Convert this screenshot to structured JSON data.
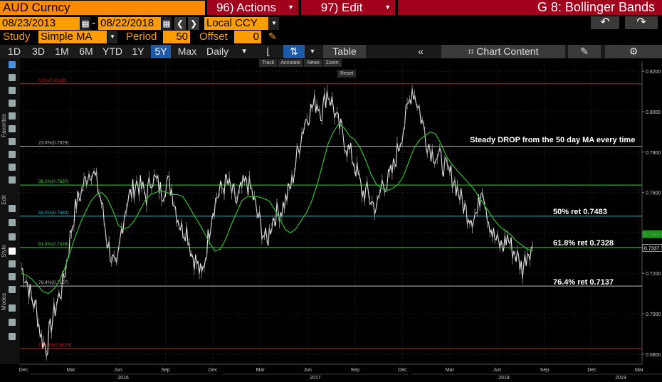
{
  "header": {
    "security": "AUD Curncy",
    "actions_label": "96) Actions",
    "edit_label": "97) Edit",
    "window_title": "G 8: Bollinger Bands"
  },
  "dates": {
    "start": "08/23/2013",
    "separator": "-",
    "end": "08/22/2018",
    "currency": "Local CCY"
  },
  "study": {
    "study_label": "Study",
    "study_value": "Simple MA",
    "period_label": "Period",
    "period_value": "50",
    "offset_label": "Offset",
    "offset_value": "0"
  },
  "toolbar": {
    "ranges": [
      "1D",
      "3D",
      "1M",
      "6M",
      "YTD",
      "1Y",
      "5Y",
      "Max"
    ],
    "active_range": "5Y",
    "frequency": "Daily",
    "table_label": "Table",
    "chart_content_label": "Chart Content"
  },
  "mini_toolbar": {
    "track": "Track",
    "annotate": "Annotate",
    "news": "News",
    "zoom": "Zoom",
    "reset": "Reset"
  },
  "side_labels": [
    "Favorites",
    "Edit",
    "Style",
    "Modes"
  ],
  "colors": {
    "accent": "#ff9c00",
    "header_red": "#a1001d",
    "active_blue": "#1e5aa8",
    "price": "#e6e6e6",
    "ma": "#2fbf2f",
    "fib_top": "#c81e1e",
    "fib_grey": "#bfbfbf",
    "fib_green": "#3ccf3c",
    "fib_cyan": "#2cb6c8"
  },
  "chart_data": {
    "type": "line",
    "ylim": [
      0.675,
      0.825
    ],
    "yticks": [
      "0.8200",
      "0.8000",
      "0.7800",
      "0.7600",
      "0.7400",
      "0.7200",
      "0.7000",
      "0.6800"
    ],
    "ytick_values": [
      0.82,
      0.8,
      0.78,
      0.76,
      0.74,
      0.72,
      0.7,
      0.68
    ],
    "x_month_labels": [
      "Dec",
      "Mar",
      "Jun",
      "Sep",
      "Dec",
      "Mar",
      "Jun",
      "Sep",
      "Dec",
      "Mar",
      "Jun",
      "Sep",
      "Dec",
      "Mar"
    ],
    "x_year_labels": [
      "2016",
      "2017",
      "2018",
      "2019"
    ],
    "last_price_tags": [
      "0.7383",
      "0.7337"
    ],
    "fib_levels": [
      {
        "label": "0.0%(0.8138)",
        "value": 0.8138,
        "color": "#c81e1e"
      },
      {
        "label": "23.6%(0.7829)",
        "value": 0.7829,
        "color": "#bfbfbf"
      },
      {
        "label": "38.2%(0.7637)",
        "value": 0.7637,
        "color": "#3ccf3c"
      },
      {
        "label": "50.0%(0.7483)",
        "value": 0.7483,
        "color": "#2cb6c8"
      },
      {
        "label": "61.8%(0.7328)",
        "value": 0.7328,
        "color": "#3ccf3c"
      },
      {
        "label": "76.4%(0.7137)",
        "value": 0.7137,
        "color": "#bfbfbf"
      },
      {
        "label": "100.0%(0.6828)",
        "value": 0.6828,
        "color": "#c81e1e"
      }
    ],
    "annotations": [
      "Steady DROP from the 50 day MA every time",
      "50% ret 0.7483",
      "61.8% ret 0.7328",
      "76.4% ret 0.7137"
    ],
    "series": [
      {
        "values": [
          0.723,
          0.717,
          0.708,
          0.702,
          0.688,
          0.6828,
          0.695,
          0.705,
          0.712,
          0.725,
          0.742,
          0.755,
          0.76,
          0.768,
          0.772,
          0.765,
          0.755,
          0.738,
          0.728,
          0.72,
          0.742,
          0.755,
          0.76,
          0.765,
          0.762,
          0.758,
          0.768,
          0.765,
          0.76,
          0.765,
          0.762,
          0.75,
          0.742,
          0.742,
          0.73,
          0.725,
          0.718,
          0.733,
          0.75,
          0.758,
          0.762,
          0.765,
          0.76,
          0.755,
          0.762,
          0.765,
          0.76,
          0.75,
          0.742,
          0.735,
          0.746,
          0.75,
          0.752,
          0.758,
          0.765,
          0.778,
          0.79,
          0.798,
          0.802,
          0.805,
          0.8,
          0.81,
          0.805,
          0.795,
          0.79,
          0.782,
          0.778,
          0.77,
          0.76,
          0.76,
          0.755,
          0.752,
          0.765,
          0.765,
          0.77,
          0.78,
          0.79,
          0.8,
          0.812,
          0.805,
          0.795,
          0.785,
          0.78,
          0.778,
          0.775,
          0.77,
          0.768,
          0.762,
          0.755,
          0.75,
          0.748,
          0.75,
          0.765,
          0.75,
          0.74,
          0.735,
          0.733,
          0.738,
          0.732,
          0.728,
          0.722,
          0.731,
          0.7337
        ]
      },
      {
        "values": [
          0.72,
          0.719,
          0.717,
          0.714,
          0.711,
          0.71,
          0.712,
          0.716,
          0.722,
          0.73,
          0.738,
          0.745,
          0.751,
          0.756,
          0.759,
          0.76,
          0.757,
          0.751,
          0.744,
          0.742,
          0.743,
          0.746,
          0.751,
          0.756,
          0.759,
          0.76,
          0.761,
          0.76,
          0.759,
          0.759,
          0.758,
          0.754,
          0.749,
          0.745,
          0.74,
          0.735,
          0.731,
          0.732,
          0.737,
          0.744,
          0.75,
          0.756,
          0.758,
          0.758,
          0.758,
          0.757,
          0.756,
          0.752,
          0.747,
          0.742,
          0.74,
          0.742,
          0.746,
          0.75,
          0.756,
          0.764,
          0.774,
          0.784,
          0.79,
          0.794,
          0.792,
          0.788,
          0.786,
          0.782,
          0.776,
          0.769,
          0.764,
          0.762,
          0.761,
          0.762,
          0.764,
          0.768,
          0.775,
          0.782,
          0.786,
          0.788,
          0.79,
          0.789,
          0.784,
          0.778,
          0.774,
          0.771,
          0.768,
          0.765,
          0.762,
          0.758,
          0.754,
          0.75,
          0.746,
          0.743,
          0.741,
          0.739,
          0.736,
          0.734,
          0.732,
          0.731
        ]
      }
    ]
  }
}
